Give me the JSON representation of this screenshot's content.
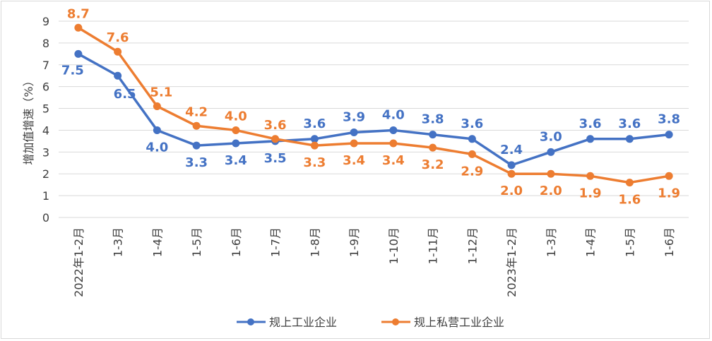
{
  "chart_data": {
    "type": "line",
    "categories": [
      "2022年1-2月",
      "1-3月",
      "1-4月",
      "1-5月",
      "1-6月",
      "1-7月",
      "1-8月",
      "1-9月",
      "1-10月",
      "1-11月",
      "1-12月",
      "2023年1-2月",
      "1-3月",
      "1-4月",
      "1-5月",
      "1-6月"
    ],
    "series": [
      {
        "name": "规上工业企业",
        "color": "#4472C4",
        "values": [
          7.5,
          6.5,
          4.0,
          3.3,
          3.4,
          3.5,
          3.6,
          3.9,
          4.0,
          3.8,
          3.6,
          2.4,
          3.0,
          3.6,
          3.6,
          3.8
        ]
      },
      {
        "name": "规上私营工业企业",
        "color": "#ED7D31",
        "values": [
          8.7,
          7.6,
          5.1,
          4.2,
          4.0,
          3.6,
          3.3,
          3.4,
          3.4,
          3.2,
          2.9,
          2.0,
          2.0,
          1.9,
          1.6,
          1.9
        ]
      }
    ],
    "title": "",
    "xlabel": "",
    "ylabel": "增加值增速（%）",
    "ylim": [
      0,
      9
    ],
    "yticks": [
      0,
      1,
      2,
      3,
      4,
      5,
      6,
      7,
      8,
      9
    ],
    "grid": true,
    "legend": "bottom",
    "data_labels": true
  }
}
